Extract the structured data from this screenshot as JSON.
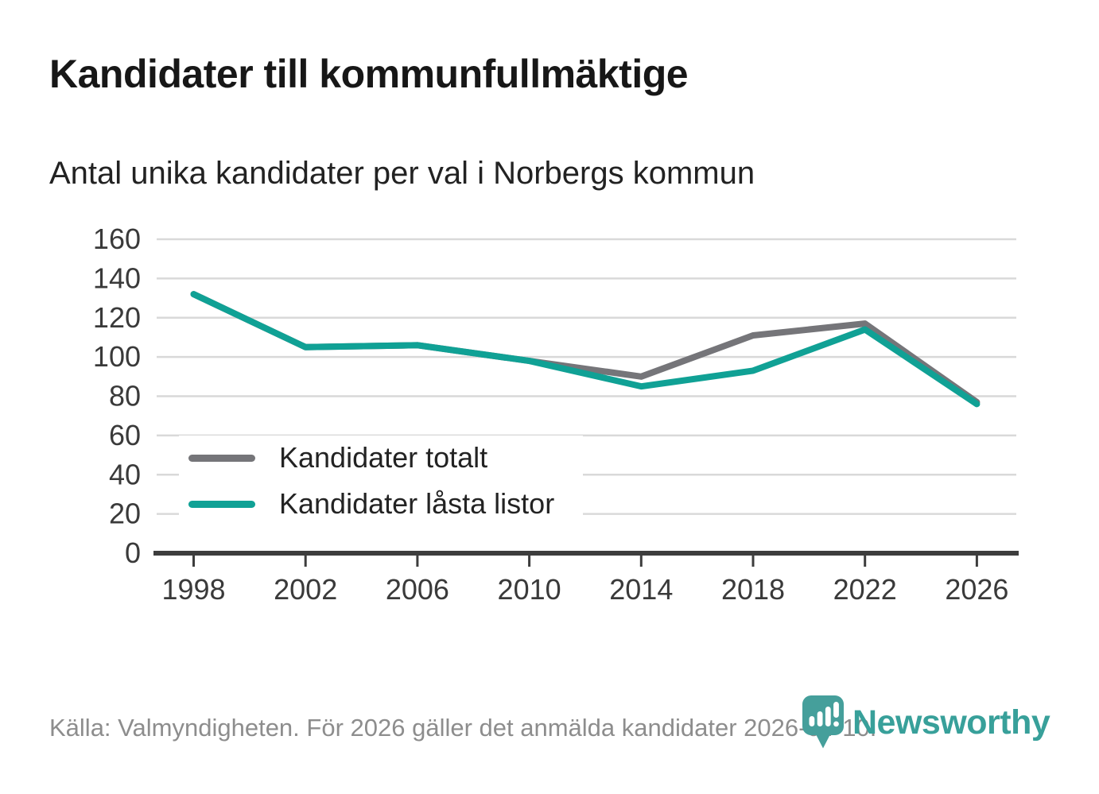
{
  "header": {
    "title": "Kandidater till kommunfullmäktige",
    "subtitle": "Antal unika kandidater per val i Norbergs kommun"
  },
  "chart_data": {
    "type": "line",
    "title": "Kandidater till kommunfullmäktige",
    "subtitle": "Antal unika kandidater per val i Norbergs kommun",
    "categories": [
      "1998",
      "2002",
      "2006",
      "2010",
      "2014",
      "2018",
      "2022",
      "2026"
    ],
    "series": [
      {
        "name": "Kandidater totalt",
        "color": "#757579",
        "values": [
          132,
          105,
          106,
          98,
          90,
          111,
          117,
          77
        ]
      },
      {
        "name": "Kandidater låsta listor",
        "color": "#10a195",
        "values": [
          132,
          105,
          106,
          98,
          85,
          93,
          114,
          76
        ]
      }
    ],
    "xlabel": "",
    "ylabel": "",
    "ylim": [
      0,
      160
    ],
    "yticks": [
      0,
      20,
      40,
      60,
      80,
      100,
      120,
      140,
      160
    ],
    "grid": true,
    "legend_position": "inside-bottom-left"
  },
  "footer": {
    "source": "Källa: Valmyndigheten. För 2026 gäller det anmälda kandidater 2026-04-10.",
    "brand": "Newsworthy"
  },
  "colors": {
    "accent_teal": "#10a195",
    "series_gray": "#757579",
    "grid": "#d9d9d9",
    "axis": "#3d3d3d",
    "tick_text": "#3a3a3a",
    "logo_teal": "#459f9b",
    "wordmark_teal": "#38a09a",
    "text_dark": "#171717",
    "text_muted": "#8d8d8d"
  }
}
